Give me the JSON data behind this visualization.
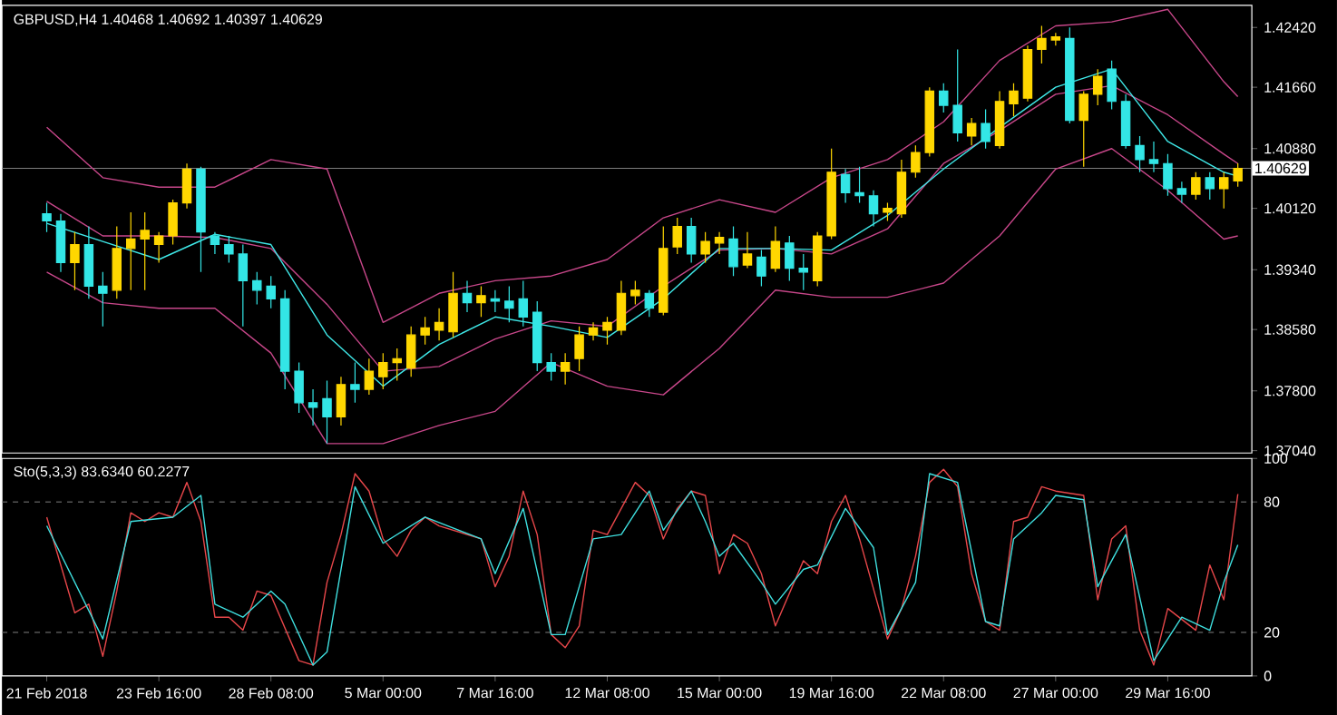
{
  "chart_data": [
    {
      "type": "candlestick",
      "title": "GBPUSD,H4 1.40468 1.40692 1.40397 1.40629",
      "categories": [
        null,
        null,
        null,
        null,
        null,
        null,
        null,
        null,
        null,
        null,
        null,
        null,
        null,
        null,
        null,
        null,
        null,
        null,
        null,
        null,
        null,
        null,
        null,
        null,
        null,
        null,
        null,
        null,
        null,
        null,
        null,
        null,
        null,
        null,
        null,
        null,
        null,
        null,
        null,
        null,
        null,
        null,
        null,
        null,
        null,
        null,
        null,
        null,
        null,
        null,
        null,
        null,
        null,
        null,
        null,
        null,
        null,
        null,
        null,
        null,
        null,
        null,
        null,
        null,
        null,
        null,
        null,
        null,
        null,
        null,
        null,
        null,
        null,
        null,
        null,
        null,
        null,
        null,
        null,
        null,
        null,
        null,
        null,
        null,
        null,
        null
      ],
      "ohlc": [
        [
          1.4005,
          1.4019,
          1.3982,
          1.3996
        ],
        [
          1.3996,
          1.4005,
          1.3931,
          1.3943
        ],
        [
          1.3943,
          1.3982,
          1.3908,
          1.3966
        ],
        [
          1.3966,
          1.3989,
          1.3897,
          1.3913
        ],
        [
          1.3913,
          1.3931,
          1.3862,
          1.3904
        ],
        [
          1.3908,
          1.3989,
          1.3897,
          1.3961
        ],
        [
          1.3961,
          1.4007,
          1.3908,
          1.3973
        ],
        [
          1.3973,
          1.4007,
          1.3908,
          1.3984
        ],
        [
          1.3966,
          1.3982,
          1.3943,
          1.3977
        ],
        [
          1.3977,
          1.4023,
          1.3966,
          1.4019
        ],
        [
          1.4019,
          1.4069,
          1.4012,
          1.4062
        ],
        [
          1.4062,
          1.4065,
          1.3931,
          1.3982
        ],
        [
          1.3977,
          1.3982,
          1.3954,
          1.3966
        ],
        [
          1.3966,
          1.3977,
          1.3943,
          1.3954
        ],
        [
          1.3954,
          1.3966,
          1.3862,
          1.392
        ],
        [
          1.392,
          1.3931,
          1.389,
          1.3908
        ],
        [
          1.3913,
          1.3926,
          1.3885,
          1.3897
        ],
        [
          1.3897,
          1.3908,
          1.3782,
          1.3805
        ],
        [
          1.3805,
          1.3816,
          1.3752,
          1.3765
        ],
        [
          1.3765,
          1.3782,
          1.3736,
          1.3759
        ],
        [
          1.377,
          1.3793,
          1.3713,
          1.3747
        ],
        [
          1.3747,
          1.3798,
          1.3736,
          1.3788
        ],
        [
          1.3788,
          1.3816,
          1.3765,
          1.3782
        ],
        [
          1.3782,
          1.3821,
          1.3775,
          1.3805
        ],
        [
          1.3798,
          1.3828,
          1.3782,
          1.3816
        ],
        [
          1.3816,
          1.3834,
          1.3793,
          1.3821
        ],
        [
          1.3809,
          1.3862,
          1.3798,
          1.3851
        ],
        [
          1.3851,
          1.3874,
          1.3839,
          1.386
        ],
        [
          1.3857,
          1.3885,
          1.3844,
          1.3867
        ],
        [
          1.3855,
          1.3931,
          1.3848,
          1.3904
        ],
        [
          1.3904,
          1.392,
          1.388,
          1.3892
        ],
        [
          1.3892,
          1.3913,
          1.3874,
          1.3901
        ],
        [
          1.3897,
          1.3908,
          1.388,
          1.3894
        ],
        [
          1.3894,
          1.3913,
          1.3867,
          1.3885
        ],
        [
          1.3897,
          1.392,
          1.3862,
          1.3874
        ],
        [
          1.388,
          1.3894,
          1.3805,
          1.3816
        ],
        [
          1.3816,
          1.3828,
          1.3793,
          1.3805
        ],
        [
          1.3805,
          1.3828,
          1.3788,
          1.3816
        ],
        [
          1.3821,
          1.3862,
          1.3805,
          1.3851
        ],
        [
          1.3851,
          1.3867,
          1.3844,
          1.386
        ],
        [
          1.3857,
          1.3874,
          1.3839,
          1.3867
        ],
        [
          1.3857,
          1.392,
          1.3851,
          1.3904
        ],
        [
          1.3901,
          1.392,
          1.389,
          1.3908
        ],
        [
          1.3904,
          1.3908,
          1.3874,
          1.3885
        ],
        [
          1.388,
          1.3989,
          1.3876,
          1.3961
        ],
        [
          1.3963,
          1.4,
          1.3954,
          1.3989
        ],
        [
          1.3989,
          1.4,
          1.3943,
          1.3954
        ],
        [
          1.3954,
          1.3982,
          1.3943,
          1.397
        ],
        [
          1.3968,
          1.3982,
          1.3954,
          1.3975
        ],
        [
          1.3973,
          1.3989,
          1.3926,
          1.3938
        ],
        [
          1.394,
          1.3982,
          1.3936,
          1.3954
        ],
        [
          1.395,
          1.3959,
          1.3913,
          1.3926
        ],
        [
          1.3936,
          1.3989,
          1.3931,
          1.397
        ],
        [
          1.3968,
          1.3977,
          1.392,
          1.3936
        ],
        [
          1.3936,
          1.3954,
          1.3908,
          1.3931
        ],
        [
          1.392,
          1.3982,
          1.3913,
          1.3977
        ],
        [
          1.3977,
          1.4088,
          1.3973,
          1.4058
        ],
        [
          1.4055,
          1.4062,
          1.4019,
          1.4032
        ],
        [
          1.4032,
          1.4065,
          1.4019,
          1.4028
        ],
        [
          1.4028,
          1.4035,
          1.3989,
          1.4005
        ],
        [
          1.4007,
          1.4019,
          1.3996,
          1.4012
        ],
        [
          1.4005,
          1.4074,
          1.4,
          1.4058
        ],
        [
          1.4058,
          1.4092,
          1.4051,
          1.4083
        ],
        [
          1.4083,
          1.4166,
          1.4078,
          1.4161
        ],
        [
          1.4161,
          1.4171,
          1.4134,
          1.4143
        ],
        [
          1.4143,
          1.4214,
          1.4097,
          1.4108
        ],
        [
          1.4104,
          1.4127,
          1.4092,
          1.412
        ],
        [
          1.412,
          1.4138,
          1.4088,
          1.4097
        ],
        [
          1.4092,
          1.4161,
          1.4088,
          1.4148
        ],
        [
          1.4145,
          1.4171,
          1.4129,
          1.4161
        ],
        [
          1.4152,
          1.4219,
          1.4148,
          1.4214
        ],
        [
          1.4214,
          1.4244,
          1.4196,
          1.4228
        ],
        [
          1.4226,
          1.4235,
          1.4219,
          1.423
        ],
        [
          1.4228,
          1.4242,
          1.412,
          1.4124
        ],
        [
          1.4124,
          1.4161,
          1.4065,
          1.4157
        ],
        [
          1.4157,
          1.4189,
          1.4143,
          1.418
        ],
        [
          1.4189,
          1.42,
          1.4138,
          1.4148
        ],
        [
          1.4148,
          1.4157,
          1.4088,
          1.4092
        ],
        [
          1.4092,
          1.4104,
          1.4058,
          1.4074
        ],
        [
          1.4074,
          1.4097,
          1.4058,
          1.4069
        ],
        [
          1.4069,
          1.4081,
          1.4028,
          1.4037
        ],
        [
          1.4037,
          1.4046,
          1.4019,
          1.403
        ],
        [
          1.403,
          1.4058,
          1.4023,
          1.4051
        ],
        [
          1.4051,
          1.4058,
          1.4023,
          1.4037
        ],
        [
          1.4037,
          1.4058,
          1.4012,
          1.4051
        ],
        [
          1.40468,
          1.40692,
          1.40397,
          1.40629
        ]
      ],
      "colors": [
        "#33e6e6",
        "#33e6e6",
        "#ffd700",
        "#33e6e6",
        "#33e6e6",
        "#ffd700",
        "#ffd700",
        "#ffd700",
        "#ffd700",
        "#ffd700",
        "#ffd700",
        "#33e6e6",
        "#33e6e6",
        "#33e6e6",
        "#33e6e6",
        "#33e6e6",
        "#33e6e6",
        "#33e6e6",
        "#33e6e6",
        "#33e6e6",
        "#33e6e6",
        "#ffd700",
        "#33e6e6",
        "#ffd700",
        "#ffd700",
        "#ffd700",
        "#ffd700",
        "#ffd700",
        "#ffd700",
        "#ffd700",
        "#33e6e6",
        "#ffd700",
        "#33e6e6",
        "#33e6e6",
        "#33e6e6",
        "#33e6e6",
        "#33e6e6",
        "#ffd700",
        "#ffd700",
        "#ffd700",
        "#ffd700",
        "#ffd700",
        "#ffd700",
        "#33e6e6",
        "#ffd700",
        "#ffd700",
        "#33e6e6",
        "#ffd700",
        "#ffd700",
        "#33e6e6",
        "#ffd700",
        "#33e6e6",
        "#ffd700",
        "#33e6e6",
        "#33e6e6",
        "#ffd700",
        "#ffd700",
        "#33e6e6",
        "#33e6e6",
        "#33e6e6",
        "#ffd700",
        "#ffd700",
        "#ffd700",
        "#ffd700",
        "#33e6e6",
        "#33e6e6",
        "#ffd700",
        "#33e6e6",
        "#ffd700",
        "#ffd700",
        "#ffd700",
        "#ffd700",
        "#ffd700",
        "#33e6e6",
        "#ffd700",
        "#ffd700",
        "#33e6e6",
        "#33e6e6",
        "#33e6e6",
        "#33e6e6",
        "#33e6e6",
        "#33e6e6",
        "#ffd700",
        "#33e6e6",
        "#ffd700",
        "#ffd700"
      ],
      "series": [
        {
          "type": "line",
          "color": "#c8478a",
          "values": [
            1.4115,
            null,
            null,
            null,
            1.4051,
            null,
            null,
            null,
            1.4039,
            null,
            null,
            null,
            1.4039,
            null,
            null,
            null,
            1.4074,
            null,
            null,
            null,
            1.4062,
            null,
            null,
            null,
            1.3867,
            null,
            null,
            null,
            1.3904,
            null,
            null,
            null,
            1.392,
            null,
            null,
            null,
            1.3926,
            null,
            null,
            null,
            1.3947,
            null,
            null,
            null,
            1.4,
            null,
            null,
            null,
            1.4023,
            null,
            null,
            null,
            1.4007,
            null,
            null,
            null,
            1.4051,
            null,
            null,
            null,
            1.4074,
            null,
            null,
            null,
            1.4122,
            null,
            null,
            null,
            1.42,
            null,
            null,
            null,
            1.4244,
            null,
            null,
            null,
            1.4249,
            null,
            null,
            null,
            1.4265,
            null,
            null,
            null,
            1.4173,
            1.4154
          ]
        },
        {
          "type": "line",
          "color": "#c8478a",
          "values": [
            1.4021,
            null,
            null,
            null,
            1.3977,
            null,
            null,
            null,
            1.3977,
            null,
            null,
            null,
            1.3975,
            null,
            null,
            null,
            1.3961,
            null,
            null,
            null,
            1.389,
            null,
            null,
            null,
            1.3805,
            null,
            null,
            null,
            1.3811,
            null,
            null,
            null,
            1.3846,
            null,
            null,
            null,
            1.3869,
            null,
            null,
            null,
            1.3862,
            null,
            null,
            null,
            1.3913,
            null,
            null,
            null,
            1.3959,
            null,
            null,
            null,
            1.3961,
            null,
            null,
            null,
            1.3954,
            null,
            null,
            null,
            1.3986,
            null,
            null,
            null,
            1.4069,
            null,
            null,
            null,
            1.4111,
            null,
            null,
            null,
            1.4157,
            null,
            null,
            null,
            1.4168,
            null,
            null,
            null,
            1.4131,
            null,
            null,
            null,
            1.4081,
            1.4069
          ]
        },
        {
          "type": "line",
          "color": "#c8478a",
          "values": [
            1.3931,
            null,
            null,
            null,
            1.3892,
            null,
            null,
            null,
            1.3885,
            null,
            null,
            null,
            1.3885,
            null,
            null,
            null,
            1.3828,
            null,
            null,
            null,
            1.3713,
            null,
            null,
            null,
            1.3713,
            null,
            null,
            null,
            1.3736,
            null,
            null,
            null,
            1.3754,
            null,
            null,
            null,
            1.3816,
            null,
            null,
            null,
            1.3786,
            null,
            null,
            null,
            1.3775,
            null,
            null,
            null,
            1.3834,
            null,
            null,
            null,
            1.3908,
            null,
            null,
            null,
            1.3899,
            null,
            null,
            null,
            1.3899,
            null,
            null,
            null,
            1.3917,
            null,
            null,
            null,
            1.3977,
            null,
            null,
            null,
            1.4062,
            null,
            null,
            null,
            1.4088,
            null,
            null,
            null,
            1.4035,
            null,
            null,
            null,
            1.3973,
            1.3977
          ]
        },
        {
          "type": "line",
          "color": "#3fe8e8",
          "values": [
            1.3993,
            null,
            null,
            null,
            1.397,
            null,
            null,
            null,
            1.3947,
            null,
            null,
            null,
            1.3979,
            null,
            null,
            null,
            1.3966,
            null,
            null,
            null,
            1.3851,
            null,
            null,
            null,
            1.3786,
            null,
            null,
            null,
            1.3839,
            null,
            null,
            null,
            1.3874,
            null,
            null,
            null,
            1.3862,
            null,
            null,
            null,
            1.3848,
            null,
            null,
            null,
            1.3897,
            null,
            null,
            null,
            1.3961,
            null,
            null,
            null,
            1.3961,
            null,
            null,
            null,
            1.3959,
            null,
            null,
            null,
            1.4003,
            null,
            null,
            null,
            1.4062,
            null,
            null,
            null,
            1.4115,
            null,
            null,
            null,
            1.4166,
            null,
            null,
            null,
            1.4189,
            null,
            null,
            null,
            1.4097,
            null,
            null,
            null,
            1.4058,
            1.4053
          ]
        }
      ],
      "ylim": [
        1.3701,
        1.427
      ],
      "yticks": [
        {
          "value": 1.3704,
          "label": "1.37040"
        },
        {
          "value": 1.378,
          "label": "1.37800"
        },
        {
          "value": 1.3858,
          "label": "1.38580"
        },
        {
          "value": 1.3934,
          "label": "1.39340"
        },
        {
          "value": 1.4012,
          "label": "1.40120"
        },
        {
          "value": 1.4088,
          "label": "1.40880"
        },
        {
          "value": 1.4166,
          "label": "1.41660"
        },
        {
          "value": 1.4242,
          "label": "1.42420"
        }
      ],
      "ref_lines": [
        {
          "axis": "y",
          "value": 1.40629,
          "label": "1.40629",
          "color": "#808080"
        }
      ],
      "tick_labels": "y"
    },
    {
      "type": "line",
      "title": "Sto(5,3,3) 83.6340 60.2277",
      "categories": [
        "21 Feb 2018",
        null,
        null,
        null,
        null,
        null,
        null,
        null,
        "23 Feb 16:00",
        null,
        null,
        null,
        null,
        null,
        null,
        null,
        "28 Feb 08:00",
        null,
        null,
        null,
        null,
        null,
        null,
        null,
        "5 Mar 00:00",
        null,
        null,
        null,
        null,
        null,
        null,
        null,
        "7 Mar 16:00",
        null,
        null,
        null,
        null,
        null,
        null,
        null,
        "12 Mar 08:00",
        null,
        null,
        null,
        null,
        null,
        null,
        null,
        "15 Mar 00:00",
        null,
        null,
        null,
        null,
        null,
        null,
        null,
        "19 Mar 16:00",
        null,
        null,
        null,
        null,
        null,
        null,
        null,
        "22 Mar 08:00",
        null,
        null,
        null,
        null,
        null,
        null,
        null,
        "27 Mar 00:00",
        null,
        null,
        null,
        null,
        null,
        null,
        null,
        "29 Mar 16:00",
        null,
        null,
        null,
        null,
        null
      ],
      "series": [
        {
          "color": "#e8474a",
          "values": [
            73,
            51,
            29,
            33,
            9,
            39,
            75,
            71,
            75,
            73,
            89,
            71,
            27,
            27,
            21,
            39,
            37,
            null,
            7,
            5,
            43,
            65,
            93,
            85,
            63,
            55,
            67,
            73,
            69,
            null,
            null,
            63,
            41,
            55,
            85,
            65,
            19,
            13,
            23,
            67,
            65,
            null,
            89,
            83,
            63,
            77,
            85,
            83,
            47,
            65,
            61,
            47,
            23,
            null,
            53,
            47,
            71,
            83,
            63,
            null,
            17,
            31,
            55,
            89,
            95,
            87,
            47,
            25,
            21,
            71,
            73,
            87,
            85,
            null,
            83,
            35,
            63,
            69,
            21,
            5,
            31,
            null,
            21,
            51,
            35,
            83.634
          ]
        },
        {
          "color": "#3fe0e0",
          "values": [
            69,
            null,
            43,
            null,
            17,
            null,
            71,
            null,
            null,
            73,
            null,
            83,
            33,
            null,
            27,
            null,
            39,
            33,
            null,
            5,
            11,
            null,
            87,
            null,
            61,
            null,
            null,
            73,
            null,
            null,
            null,
            63,
            47,
            null,
            77,
            null,
            19,
            19,
            null,
            63,
            null,
            65,
            null,
            85,
            67,
            null,
            85,
            71,
            55,
            61,
            null,
            43,
            33,
            null,
            49,
            51,
            null,
            77,
            null,
            59,
            19,
            null,
            43,
            93,
            null,
            89,
            null,
            25,
            23,
            63,
            null,
            75,
            83,
            null,
            81,
            41,
            null,
            65,
            null,
            7,
            null,
            27,
            null,
            21,
            43,
            60.2277
          ]
        }
      ],
      "ylim": [
        0,
        100
      ],
      "yticks": [
        0,
        20,
        80,
        100
      ],
      "ref_lines": [
        {
          "axis": "y",
          "value": 20,
          "color": "#808080",
          "line_style": "dashed"
        },
        {
          "axis": "y",
          "value": 80,
          "color": "#808080",
          "line_style": "dashed"
        }
      ]
    }
  ]
}
